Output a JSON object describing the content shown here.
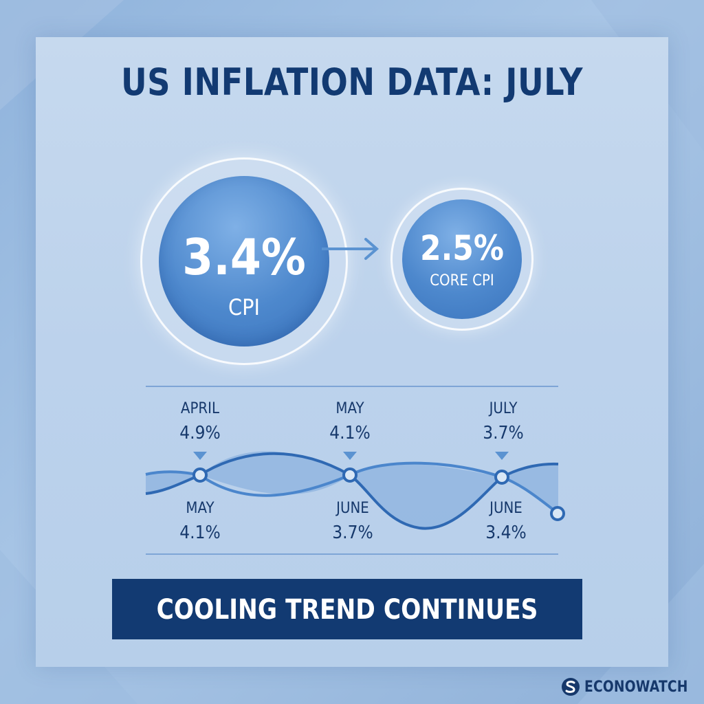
{
  "title": "US INFLATION DATA: JULY",
  "headline_cpi": {
    "value": "3.4%",
    "label": "CPI"
  },
  "core_cpi": {
    "value": "2.5%",
    "label": "CORE CPI"
  },
  "banner": "COOLING TREND CONTINUES",
  "brand": "ECONOWATCH",
  "colors": {
    "navy": "#123a72",
    "accent": "#3f78c2",
    "panel": "#c3d8ee",
    "white": "#ffffff"
  },
  "icons": {
    "arrow": "right-arrow-icon",
    "brand_logo": "s-logo-icon"
  },
  "chart_data": {
    "type": "line",
    "annotations_top": [
      {
        "month": "APRIL",
        "value": "4.9%"
      },
      {
        "month": "MAY",
        "value": "4.1%"
      },
      {
        "month": "JULY",
        "value": "3.7%"
      }
    ],
    "annotations_bottom": [
      {
        "month": "MAY",
        "value": "4.1%"
      },
      {
        "month": "JUNE",
        "value": "3.7%"
      },
      {
        "month": "JUNE",
        "value": "3.4%"
      }
    ],
    "grid": false,
    "legend": "none"
  }
}
